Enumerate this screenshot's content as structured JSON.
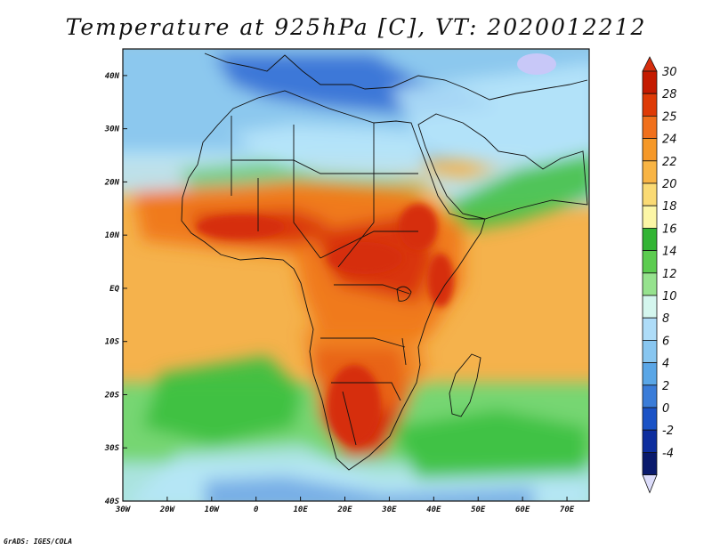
{
  "title": "Temperature at 925hPa [C], VT: 2020012212",
  "credit": "GrADS: IGES/COLA",
  "map": {
    "lon_range": [
      -30,
      75
    ],
    "lat_range": [
      -40,
      45
    ],
    "lon_ticks": [
      {
        "value": -30,
        "label": "30W"
      },
      {
        "value": -20,
        "label": "20W"
      },
      {
        "value": -10,
        "label": "10W"
      },
      {
        "value": 0,
        "label": "0"
      },
      {
        "value": 10,
        "label": "10E"
      },
      {
        "value": 20,
        "label": "20E"
      },
      {
        "value": 30,
        "label": "30E"
      },
      {
        "value": 40,
        "label": "40E"
      },
      {
        "value": 50,
        "label": "50E"
      },
      {
        "value": 60,
        "label": "60E"
      },
      {
        "value": 70,
        "label": "70E"
      }
    ],
    "lat_ticks": [
      {
        "value": 40,
        "label": "40N"
      },
      {
        "value": 30,
        "label": "30N"
      },
      {
        "value": 20,
        "label": "20N"
      },
      {
        "value": 10,
        "label": "10N"
      },
      {
        "value": 0,
        "label": "EQ"
      },
      {
        "value": -10,
        "label": "10S"
      },
      {
        "value": -20,
        "label": "20S"
      },
      {
        "value": -30,
        "label": "30S"
      },
      {
        "value": -40,
        "label": "40S"
      }
    ],
    "field_colors": {
      "ocean_mid": "#f5b24c",
      "ocean_north": "#8cc8ee",
      "ocean_south": "#76d672",
      "hot": "#d62e0e",
      "warm": "#f07a1a",
      "green": "#3cc040",
      "cool": "#b8e6fa",
      "cold": "#3c78d8",
      "coldest": "#c8c8f8"
    }
  },
  "colorbar": {
    "labels": [
      "30",
      "28",
      "25",
      "24",
      "22",
      "20",
      "18",
      "16",
      "14",
      "12",
      "10",
      "8",
      "6",
      "4",
      "2",
      "0",
      "-2",
      "-4"
    ],
    "colors": [
      "#c41a00",
      "#de3a06",
      "#f0701c",
      "#f59828",
      "#f8b444",
      "#fada74",
      "#fcf6a6",
      "#32b434",
      "#5ccc50",
      "#96e28e",
      "#d4f6ee",
      "#aedcf8",
      "#88c6f0",
      "#5aa6e6",
      "#3a7cd8",
      "#1a52c6",
      "#0e2e9e",
      "#0a1a6c"
    ],
    "top_color": "#d62e0e",
    "bottom_color": "#dcdcfa"
  }
}
